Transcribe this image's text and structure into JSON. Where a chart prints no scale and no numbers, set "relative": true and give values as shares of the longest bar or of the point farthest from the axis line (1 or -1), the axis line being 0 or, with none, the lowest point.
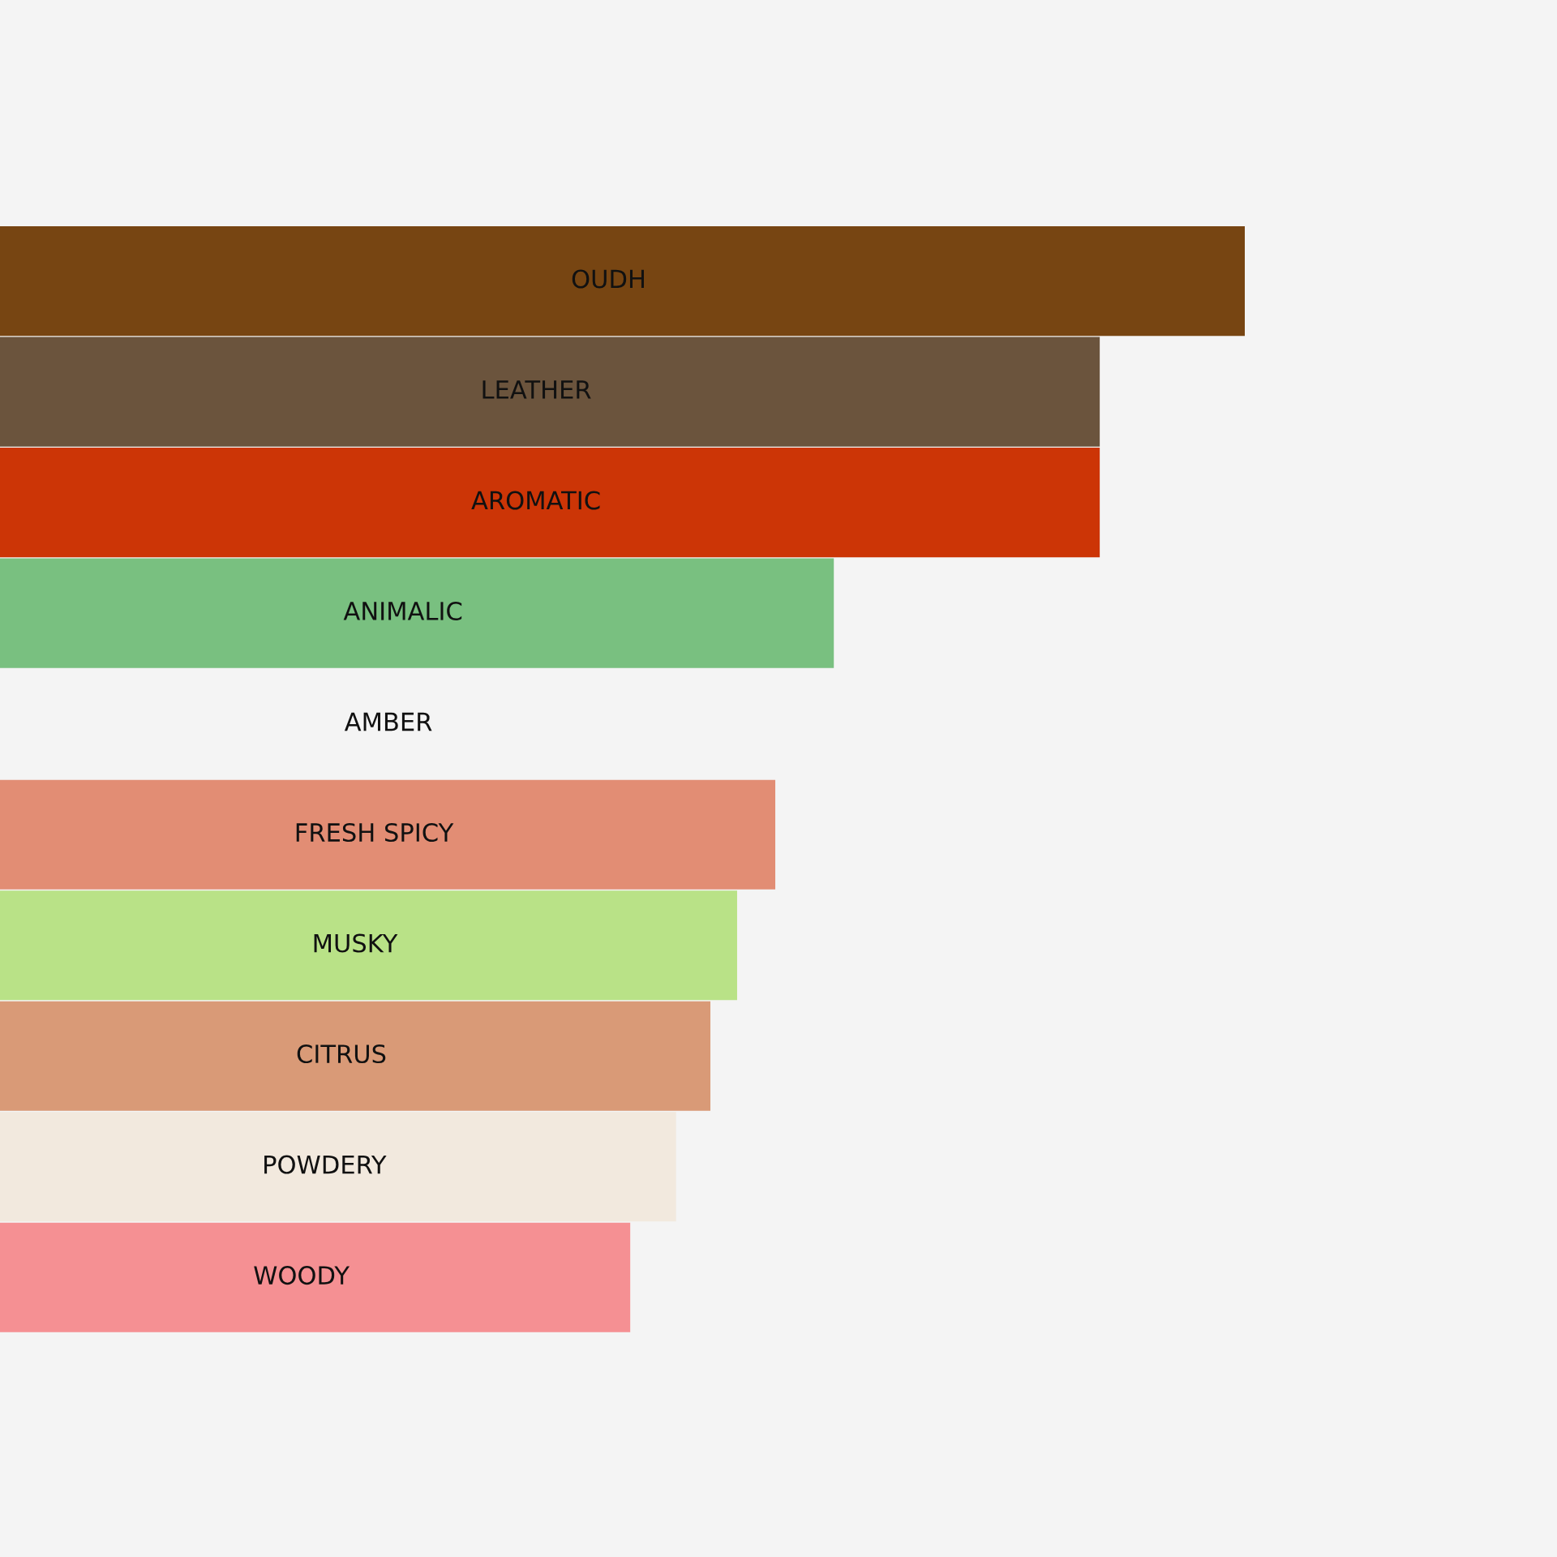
{
  "chart_data": {
    "type": "bar",
    "orientation": "horizontal",
    "relative": true,
    "data_labels": false,
    "categories": [
      "OUDH",
      "LEATHER",
      "AROMATIC",
      "ANIMALIC",
      "AMBER",
      "FRESH SPICY",
      "MUSKY",
      "CITRUS",
      "POWDERY",
      "WOODY"
    ],
    "values": [
      1,
      0.886,
      0.886,
      0.677,
      null,
      0.631,
      0.601,
      0.58,
      0.553,
      0.517
    ],
    "colors": [
      "#774512",
      "#6b543d",
      "#cc3506",
      "#79c080",
      "#f2f2f2",
      "#e28d74",
      "#b9e287",
      "#d99a77",
      "#f2e9de",
      "#f59093"
    ]
  }
}
